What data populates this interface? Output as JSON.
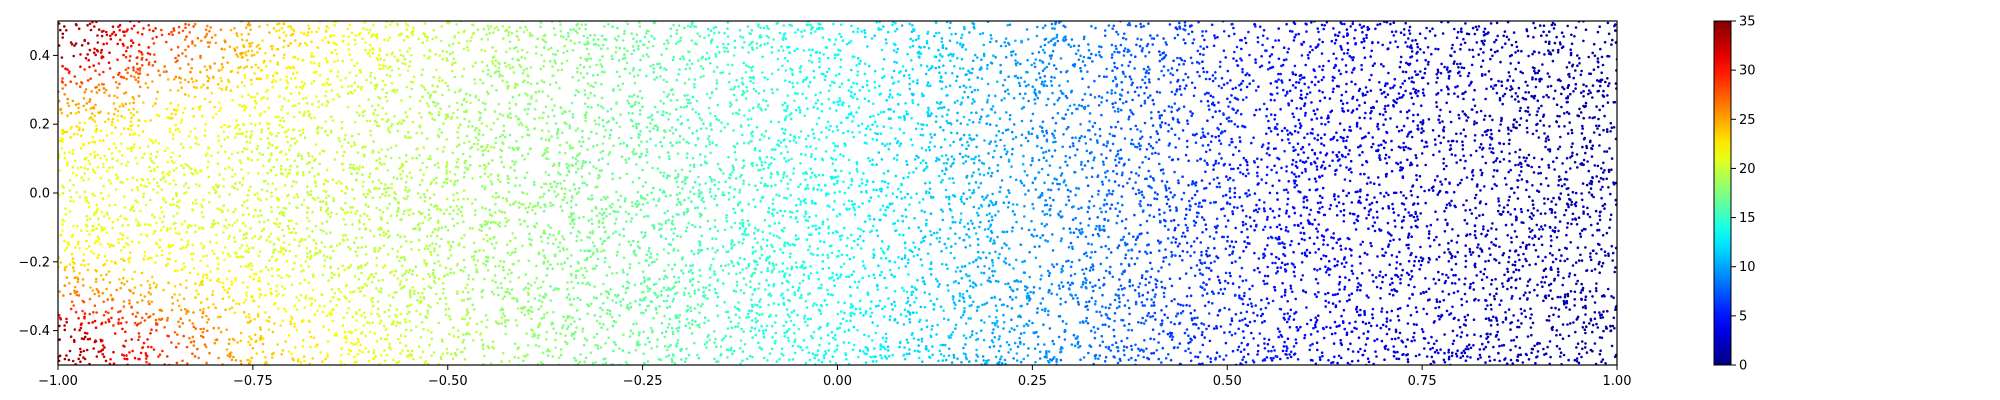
{
  "chart_data": {
    "type": "scatter",
    "title": "",
    "xlabel": "",
    "ylabel": "",
    "xlim": [
      -1.0,
      1.0
    ],
    "ylim": [
      -0.5,
      0.5
    ],
    "x_ticks": [
      {
        "value": -1.0,
        "label": "−1.00"
      },
      {
        "value": -0.75,
        "label": "−0.75"
      },
      {
        "value": -0.5,
        "label": "−0.50"
      },
      {
        "value": -0.25,
        "label": "−0.25"
      },
      {
        "value": 0.0,
        "label": "0.00"
      },
      {
        "value": 0.25,
        "label": "0.25"
      },
      {
        "value": 0.5,
        "label": "0.50"
      },
      {
        "value": 0.75,
        "label": "0.75"
      },
      {
        "value": 1.0,
        "label": "1.00"
      }
    ],
    "y_ticks": [
      {
        "value": 0.4,
        "label": "0.4"
      },
      {
        "value": 0.2,
        "label": "0.2"
      },
      {
        "value": 0.0,
        "label": "0.0"
      },
      {
        "value": -0.2,
        "label": "−0.2"
      },
      {
        "value": -0.4,
        "label": "−0.4"
      }
    ],
    "grid": false,
    "colormap": "jet",
    "colorbar": {
      "range": [
        0,
        35
      ],
      "ticks": [
        {
          "value": 0,
          "label": "0"
        },
        {
          "value": 5,
          "label": "5"
        },
        {
          "value": 10,
          "label": "10"
        },
        {
          "value": 15,
          "label": "15"
        },
        {
          "value": 20,
          "label": "20"
        },
        {
          "value": 25,
          "label": "25"
        },
        {
          "value": 30,
          "label": "30"
        },
        {
          "value": 35,
          "label": "35"
        }
      ]
    },
    "color_field_samples": {
      "x": [
        -1.0,
        -0.75,
        -0.5,
        -0.25,
        0.0,
        0.25,
        0.5,
        0.75,
        1.0
      ],
      "y": [
        0.5,
        0.4,
        0.3,
        0.2,
        0.1,
        0.0,
        -0.1,
        -0.2,
        -0.3,
        -0.4,
        -0.5
      ],
      "values": [
        [
          35,
          24,
          19.5,
          16.5,
          13.5,
          9.5,
          5.5,
          3,
          1
        ],
        [
          34,
          23.5,
          19.5,
          16.5,
          13.5,
          9.5,
          5.5,
          3,
          1
        ],
        [
          27,
          22,
          19,
          16.5,
          13.5,
          9.5,
          5.5,
          3,
          1
        ],
        [
          23,
          21,
          19,
          16.5,
          13.5,
          9.5,
          5.5,
          3,
          1
        ],
        [
          21.5,
          20.5,
          19,
          16.5,
          13.5,
          9.5,
          5.5,
          3,
          1.5
        ],
        [
          21,
          20.5,
          19,
          16.5,
          13.5,
          9.5,
          5.5,
          3,
          1.5
        ],
        [
          21.5,
          20.5,
          19,
          16.5,
          13.5,
          9.5,
          5.5,
          3,
          1.5
        ],
        [
          23,
          21,
          19,
          16.5,
          13.5,
          9.5,
          5.5,
          3,
          1
        ],
        [
          27,
          22,
          19,
          16.5,
          13.5,
          9.5,
          5.5,
          3,
          1
        ],
        [
          34,
          23.5,
          19.5,
          16.5,
          13.5,
          9.5,
          5.5,
          3,
          1
        ],
        [
          35,
          24,
          19.5,
          16.5,
          13.5,
          9.5,
          5.5,
          3,
          1
        ]
      ]
    }
  }
}
